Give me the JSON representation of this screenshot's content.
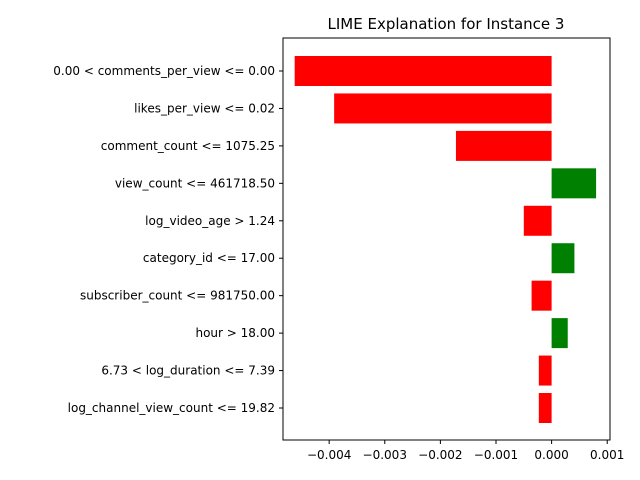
{
  "chart_data": {
    "type": "bar",
    "orientation": "horizontal",
    "title": "LIME Explanation for Instance 3",
    "xlabel": "",
    "ylabel": "",
    "categories": [
      "0.00 < comments_per_view <= 0.00",
      "likes_per_view <= 0.02",
      "comment_count <= 1075.25",
      "view_count <= 461718.50",
      "log_video_age > 1.24",
      "category_id <= 17.00",
      "subscriber_count <= 981750.00",
      "hour > 18.00",
      "6.73 < log_duration <= 7.39",
      "log_channel_view_count <= 19.82"
    ],
    "values": [
      -0.00462,
      -0.00391,
      -0.00172,
      0.0008,
      -0.0005,
      0.00041,
      -0.00036,
      0.00029,
      -0.00023,
      -0.00023
    ],
    "xlim": [
      -0.00483,
      0.00105
    ],
    "xticks": [
      -0.004,
      -0.003,
      -0.002,
      -0.001,
      0.0,
      0.001
    ],
    "xtick_labels": [
      "−0.004",
      "−0.003",
      "−0.002",
      "−0.001",
      "0.000",
      "0.001"
    ],
    "colors": {
      "positive": "#008000",
      "negative": "#ff0000"
    },
    "grid": false,
    "legend": "none"
  }
}
